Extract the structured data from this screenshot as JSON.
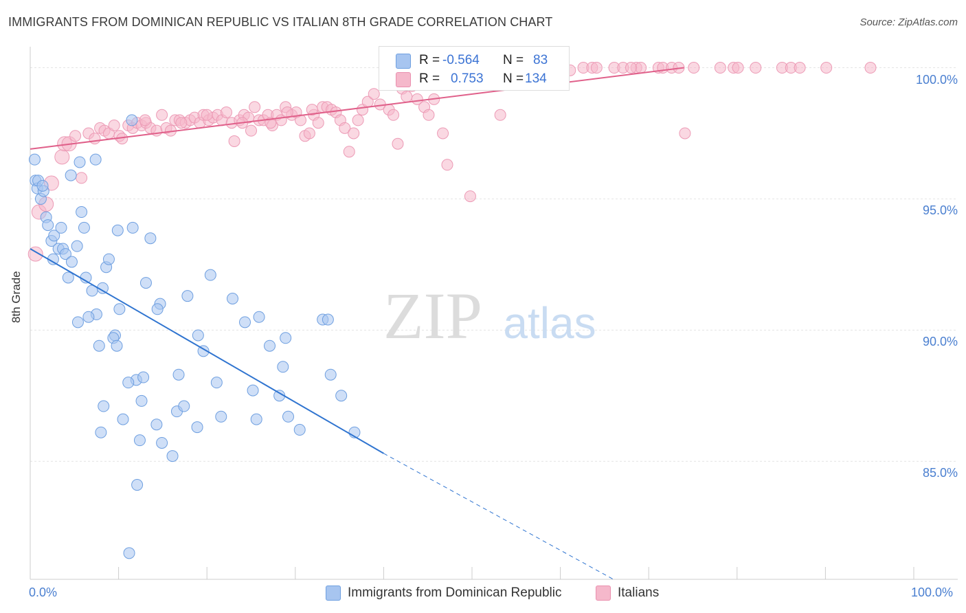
{
  "title": "IMMIGRANTS FROM DOMINICAN REPUBLIC VS ITALIAN 8TH GRADE CORRELATION CHART",
  "source": "Source: ZipAtlas.com",
  "watermark": {
    "zip": "ZIP",
    "atlas": "atlas"
  },
  "legend": {
    "blue": {
      "r_label": "R =",
      "r_value": "-0.564",
      "n_label": "N =",
      "n_value": "83"
    },
    "pink": {
      "r_label": "R =",
      "r_value": "0.753",
      "n_label": "N =",
      "n_value": "134"
    }
  },
  "chart_data": {
    "type": "scatter",
    "title": "IMMIGRANTS FROM DOMINICAN REPUBLIC VS ITALIAN 8TH GRADE CORRELATION CHART",
    "xlabel": "",
    "ylabel": "8th Grade",
    "xlim": [
      0,
      100
    ],
    "ylim": [
      80.5,
      100.8
    ],
    "x_tick_labels": [
      "0.0%",
      "100.0%"
    ],
    "y_ticks": [
      85,
      90,
      95,
      100
    ],
    "y_tick_labels": [
      "85.0%",
      "90.0%",
      "95.0%",
      "100.0%"
    ],
    "grid": true,
    "legend_position": "top-center",
    "colors": {
      "blue": "#a7c5f0",
      "blue_line": "#2f74d0",
      "pink": "#f5b8cb",
      "pink_line": "#e0608a"
    },
    "series": [
      {
        "name": "Immigrants from Dominican Republic",
        "color": "#a7c5f0",
        "trend": {
          "x0": 0,
          "y0": 93.1,
          "x1": 40,
          "y1": 85.3,
          "dashed_to_x": 66,
          "dashed_to_y": 80.5
        },
        "points": [
          [
            0.5,
            96.5
          ],
          [
            0.6,
            95.7
          ],
          [
            0.8,
            95.4
          ],
          [
            1.2,
            95.0
          ],
          [
            1.5,
            95.3
          ],
          [
            1.8,
            94.3
          ],
          [
            2.0,
            94.0
          ],
          [
            2.4,
            93.4
          ],
          [
            2.7,
            93.6
          ],
          [
            2.6,
            92.7
          ],
          [
            3.5,
            93.9
          ],
          [
            3.2,
            93.1
          ],
          [
            3.7,
            93.1
          ],
          [
            4.0,
            92.9
          ],
          [
            4.3,
            92.0
          ],
          [
            4.7,
            92.6
          ],
          [
            5.3,
            93.2
          ],
          [
            5.8,
            94.5
          ],
          [
            6.1,
            93.9
          ],
          [
            6.3,
            92.0
          ],
          [
            5.6,
            96.4
          ],
          [
            4.6,
            95.9
          ],
          [
            7.4,
            96.5
          ],
          [
            7.0,
            91.5
          ],
          [
            7.5,
            90.6
          ],
          [
            6.6,
            90.5
          ],
          [
            5.4,
            90.3
          ],
          [
            8.2,
            91.6
          ],
          [
            8.6,
            92.4
          ],
          [
            8.9,
            92.7
          ],
          [
            9.6,
            89.8
          ],
          [
            9.4,
            89.7
          ],
          [
            9.8,
            89.4
          ],
          [
            7.8,
            89.4
          ],
          [
            10.1,
            90.8
          ],
          [
            9.9,
            93.8
          ],
          [
            11.6,
            93.9
          ],
          [
            12.0,
            88.1
          ],
          [
            12.8,
            88.2
          ],
          [
            11.1,
            88.0
          ],
          [
            13.1,
            91.8
          ],
          [
            13.6,
            93.5
          ],
          [
            14.7,
            91.0
          ],
          [
            14.4,
            90.8
          ],
          [
            11.5,
            98.0
          ],
          [
            8.3,
            87.1
          ],
          [
            8.0,
            86.1
          ],
          [
            10.5,
            86.6
          ],
          [
            12.4,
            85.8
          ],
          [
            12.6,
            87.3
          ],
          [
            14.3,
            86.4
          ],
          [
            14.9,
            85.7
          ],
          [
            16.1,
            85.2
          ],
          [
            16.6,
            86.9
          ],
          [
            17.4,
            87.1
          ],
          [
            16.8,
            88.3
          ],
          [
            17.8,
            91.3
          ],
          [
            18.9,
            86.3
          ],
          [
            19.0,
            89.8
          ],
          [
            19.6,
            89.2
          ],
          [
            20.4,
            92.1
          ],
          [
            21.1,
            88.0
          ],
          [
            21.6,
            86.7
          ],
          [
            22.9,
            91.2
          ],
          [
            24.3,
            90.3
          ],
          [
            25.2,
            87.7
          ],
          [
            25.6,
            86.6
          ],
          [
            25.9,
            90.5
          ],
          [
            27.1,
            89.4
          ],
          [
            28.2,
            87.5
          ],
          [
            28.6,
            88.6
          ],
          [
            28.9,
            89.7
          ],
          [
            29.2,
            86.7
          ],
          [
            30.5,
            86.2
          ],
          [
            33.1,
            90.4
          ],
          [
            33.7,
            90.4
          ],
          [
            34.0,
            88.3
          ],
          [
            35.2,
            87.5
          ],
          [
            36.7,
            86.1
          ],
          [
            12.1,
            84.1
          ],
          [
            11.2,
            81.5
          ],
          [
            0.9,
            95.7
          ],
          [
            1.4,
            95.5
          ]
        ]
      },
      {
        "name": "Italians",
        "color": "#f5b8cb",
        "trend": {
          "x0": 0,
          "y0": 96.9,
          "x1": 74,
          "y1": 100.0
        },
        "points": [
          [
            0.6,
            92.9
          ],
          [
            1.0,
            94.5
          ],
          [
            1.8,
            94.8
          ],
          [
            2.4,
            95.6
          ],
          [
            3.6,
            96.6
          ],
          [
            3.9,
            97.1
          ],
          [
            4.4,
            97.1
          ],
          [
            5.1,
            97.4
          ],
          [
            5.8,
            95.8
          ],
          [
            6.6,
            97.5
          ],
          [
            7.3,
            97.3
          ],
          [
            7.9,
            97.7
          ],
          [
            8.4,
            97.6
          ],
          [
            8.9,
            97.5
          ],
          [
            9.5,
            97.8
          ],
          [
            10.1,
            97.4
          ],
          [
            10.4,
            97.3
          ],
          [
            11.1,
            97.8
          ],
          [
            11.6,
            97.7
          ],
          [
            12.1,
            97.9
          ],
          [
            12.6,
            97.8
          ],
          [
            13.1,
            97.9
          ],
          [
            13.6,
            97.7
          ],
          [
            14.3,
            97.6
          ],
          [
            14.9,
            98.2
          ],
          [
            15.4,
            97.7
          ],
          [
            15.9,
            97.6
          ],
          [
            16.4,
            98.0
          ],
          [
            16.9,
            98.0
          ],
          [
            17.6,
            97.9
          ],
          [
            18.1,
            98.0
          ],
          [
            18.6,
            98.1
          ],
          [
            19.2,
            97.9
          ],
          [
            19.6,
            98.2
          ],
          [
            20.2,
            98.0
          ],
          [
            20.7,
            98.1
          ],
          [
            21.2,
            98.2
          ],
          [
            21.7,
            98.0
          ],
          [
            22.2,
            98.3
          ],
          [
            22.8,
            97.9
          ],
          [
            23.1,
            97.2
          ],
          [
            23.7,
            98.0
          ],
          [
            24.2,
            98.2
          ],
          [
            24.7,
            98.1
          ],
          [
            25.0,
            97.6
          ],
          [
            25.4,
            98.5
          ],
          [
            25.9,
            98.0
          ],
          [
            26.4,
            98.0
          ],
          [
            26.9,
            98.2
          ],
          [
            27.4,
            97.8
          ],
          [
            27.9,
            98.2
          ],
          [
            28.4,
            98.0
          ],
          [
            28.9,
            98.5
          ],
          [
            29.6,
            98.2
          ],
          [
            30.1,
            98.3
          ],
          [
            30.6,
            98.0
          ],
          [
            31.1,
            97.4
          ],
          [
            31.6,
            97.5
          ],
          [
            32.1,
            98.2
          ],
          [
            32.6,
            97.9
          ],
          [
            33.1,
            98.5
          ],
          [
            33.6,
            98.5
          ],
          [
            34.1,
            98.4
          ],
          [
            34.6,
            98.3
          ],
          [
            35.1,
            98.0
          ],
          [
            35.6,
            97.7
          ],
          [
            36.1,
            96.8
          ],
          [
            36.6,
            97.5
          ],
          [
            37.1,
            98.0
          ],
          [
            37.6,
            98.4
          ],
          [
            38.2,
            98.7
          ],
          [
            38.9,
            99.0
          ],
          [
            39.6,
            98.6
          ],
          [
            40.6,
            98.4
          ],
          [
            41.1,
            98.2
          ],
          [
            41.6,
            97.1
          ],
          [
            42.1,
            99.2
          ],
          [
            42.6,
            98.9
          ],
          [
            43.2,
            99.3
          ],
          [
            43.8,
            98.8
          ],
          [
            44.6,
            98.5
          ],
          [
            45.1,
            98.2
          ],
          [
            45.7,
            98.8
          ],
          [
            46.2,
            100.0
          ],
          [
            46.7,
            97.5
          ],
          [
            47.2,
            96.3
          ],
          [
            47.8,
            100.0
          ],
          [
            48.3,
            99.5
          ],
          [
            48.8,
            100.0
          ],
          [
            49.3,
            99.9
          ],
          [
            49.8,
            95.1
          ],
          [
            50.8,
            99.8
          ],
          [
            52.3,
            100.0
          ],
          [
            53.2,
            98.2
          ],
          [
            54.6,
            100.0
          ],
          [
            55.1,
            99.8
          ],
          [
            56.1,
            100.0
          ],
          [
            56.6,
            100.0
          ],
          [
            57.6,
            99.9
          ],
          [
            58.1,
            100.0
          ],
          [
            58.6,
            100.0
          ],
          [
            59.6,
            100.0
          ],
          [
            60.1,
            100.0
          ],
          [
            61.1,
            99.9
          ],
          [
            62.6,
            100.0
          ],
          [
            63.6,
            100.0
          ],
          [
            64.1,
            100.0
          ],
          [
            66.1,
            100.0
          ],
          [
            67.1,
            100.0
          ],
          [
            68.6,
            100.0
          ],
          [
            69.1,
            100.0
          ],
          [
            71.1,
            100.0
          ],
          [
            71.6,
            100.0
          ],
          [
            72.6,
            100.0
          ],
          [
            74.1,
            97.5
          ],
          [
            75.1,
            100.0
          ],
          [
            78.1,
            100.0
          ],
          [
            79.6,
            100.0
          ],
          [
            80.1,
            100.0
          ],
          [
            82.1,
            100.0
          ],
          [
            85.1,
            100.0
          ],
          [
            86.1,
            100.0
          ],
          [
            87.1,
            100.0
          ],
          [
            90.1,
            100.0
          ],
          [
            95.1,
            100.0
          ],
          [
            73.4,
            100.0
          ],
          [
            68.0,
            100.0
          ],
          [
            13.0,
            98.0
          ],
          [
            17.1,
            97.9
          ],
          [
            20.0,
            98.2
          ],
          [
            24.0,
            97.9
          ],
          [
            27.2,
            97.9
          ],
          [
            29.1,
            98.3
          ],
          [
            31.9,
            98.4
          ]
        ]
      }
    ]
  },
  "bottom_legend": [
    "Immigrants from Dominican Republic",
    "Italians"
  ]
}
